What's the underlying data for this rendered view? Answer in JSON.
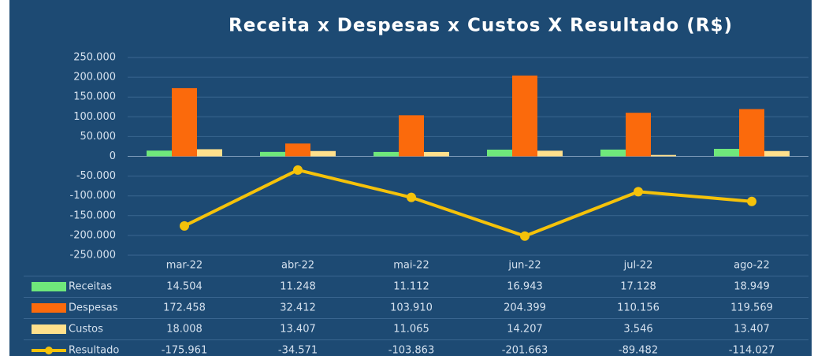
{
  "chart_data": {
    "type": "bar",
    "title": "Receita x Despesas x Custos X Resultado (R$)",
    "categories": [
      "mar-22",
      "abr-22",
      "mai-22",
      "jun-22",
      "jul-22",
      "ago-22"
    ],
    "series": [
      {
        "name": "Receitas",
        "type": "bar",
        "color": "#6fe87b",
        "values": [
          14504,
          11248,
          11112,
          16943,
          17128,
          18949
        ],
        "value_labels": [
          "14.504",
          "11.248",
          "11.112",
          "16.943",
          "17.128",
          "18.949"
        ]
      },
      {
        "name": "Despesas",
        "type": "bar",
        "color": "#fb6a0c",
        "values": [
          172458,
          32412,
          103910,
          204399,
          110156,
          119569
        ],
        "value_labels": [
          "172.458",
          "32.412",
          "103.910",
          "204.399",
          "110.156",
          "119.569"
        ]
      },
      {
        "name": "Custos",
        "type": "bar",
        "color": "#ffe08c",
        "values": [
          18008,
          13407,
          11065,
          14207,
          3546,
          13407
        ],
        "value_labels": [
          "18.008",
          "13.407",
          "11.065",
          "14.207",
          "3.546",
          "13.407"
        ]
      },
      {
        "name": "Resultado",
        "type": "line",
        "color": "#f5c20a",
        "values": [
          -175961,
          -34571,
          -103863,
          -201663,
          -89482,
          -114027
        ],
        "value_labels": [
          "-175.961",
          "-34.571",
          "-103.863",
          "-201.663",
          "-89.482",
          "-114.027"
        ]
      }
    ],
    "ylim": [
      -250000,
      250000
    ],
    "yticks": [
      {
        "value": -250000,
        "label": "-250.000"
      },
      {
        "value": -200000,
        "label": "-200.000"
      },
      {
        "value": -150000,
        "label": "-150.000"
      },
      {
        "value": -100000,
        "label": "-100.000"
      },
      {
        "value": -50000,
        "label": "-50.000"
      },
      0,
      {
        "value": 50000,
        "label": "50.000"
      },
      {
        "value": 100000,
        "label": "100.000"
      },
      {
        "value": 150000,
        "label": "150.000"
      },
      {
        "value": 200000,
        "label": "200.000"
      },
      {
        "value": 250000,
        "label": "250.000"
      }
    ],
    "grid": true
  }
}
